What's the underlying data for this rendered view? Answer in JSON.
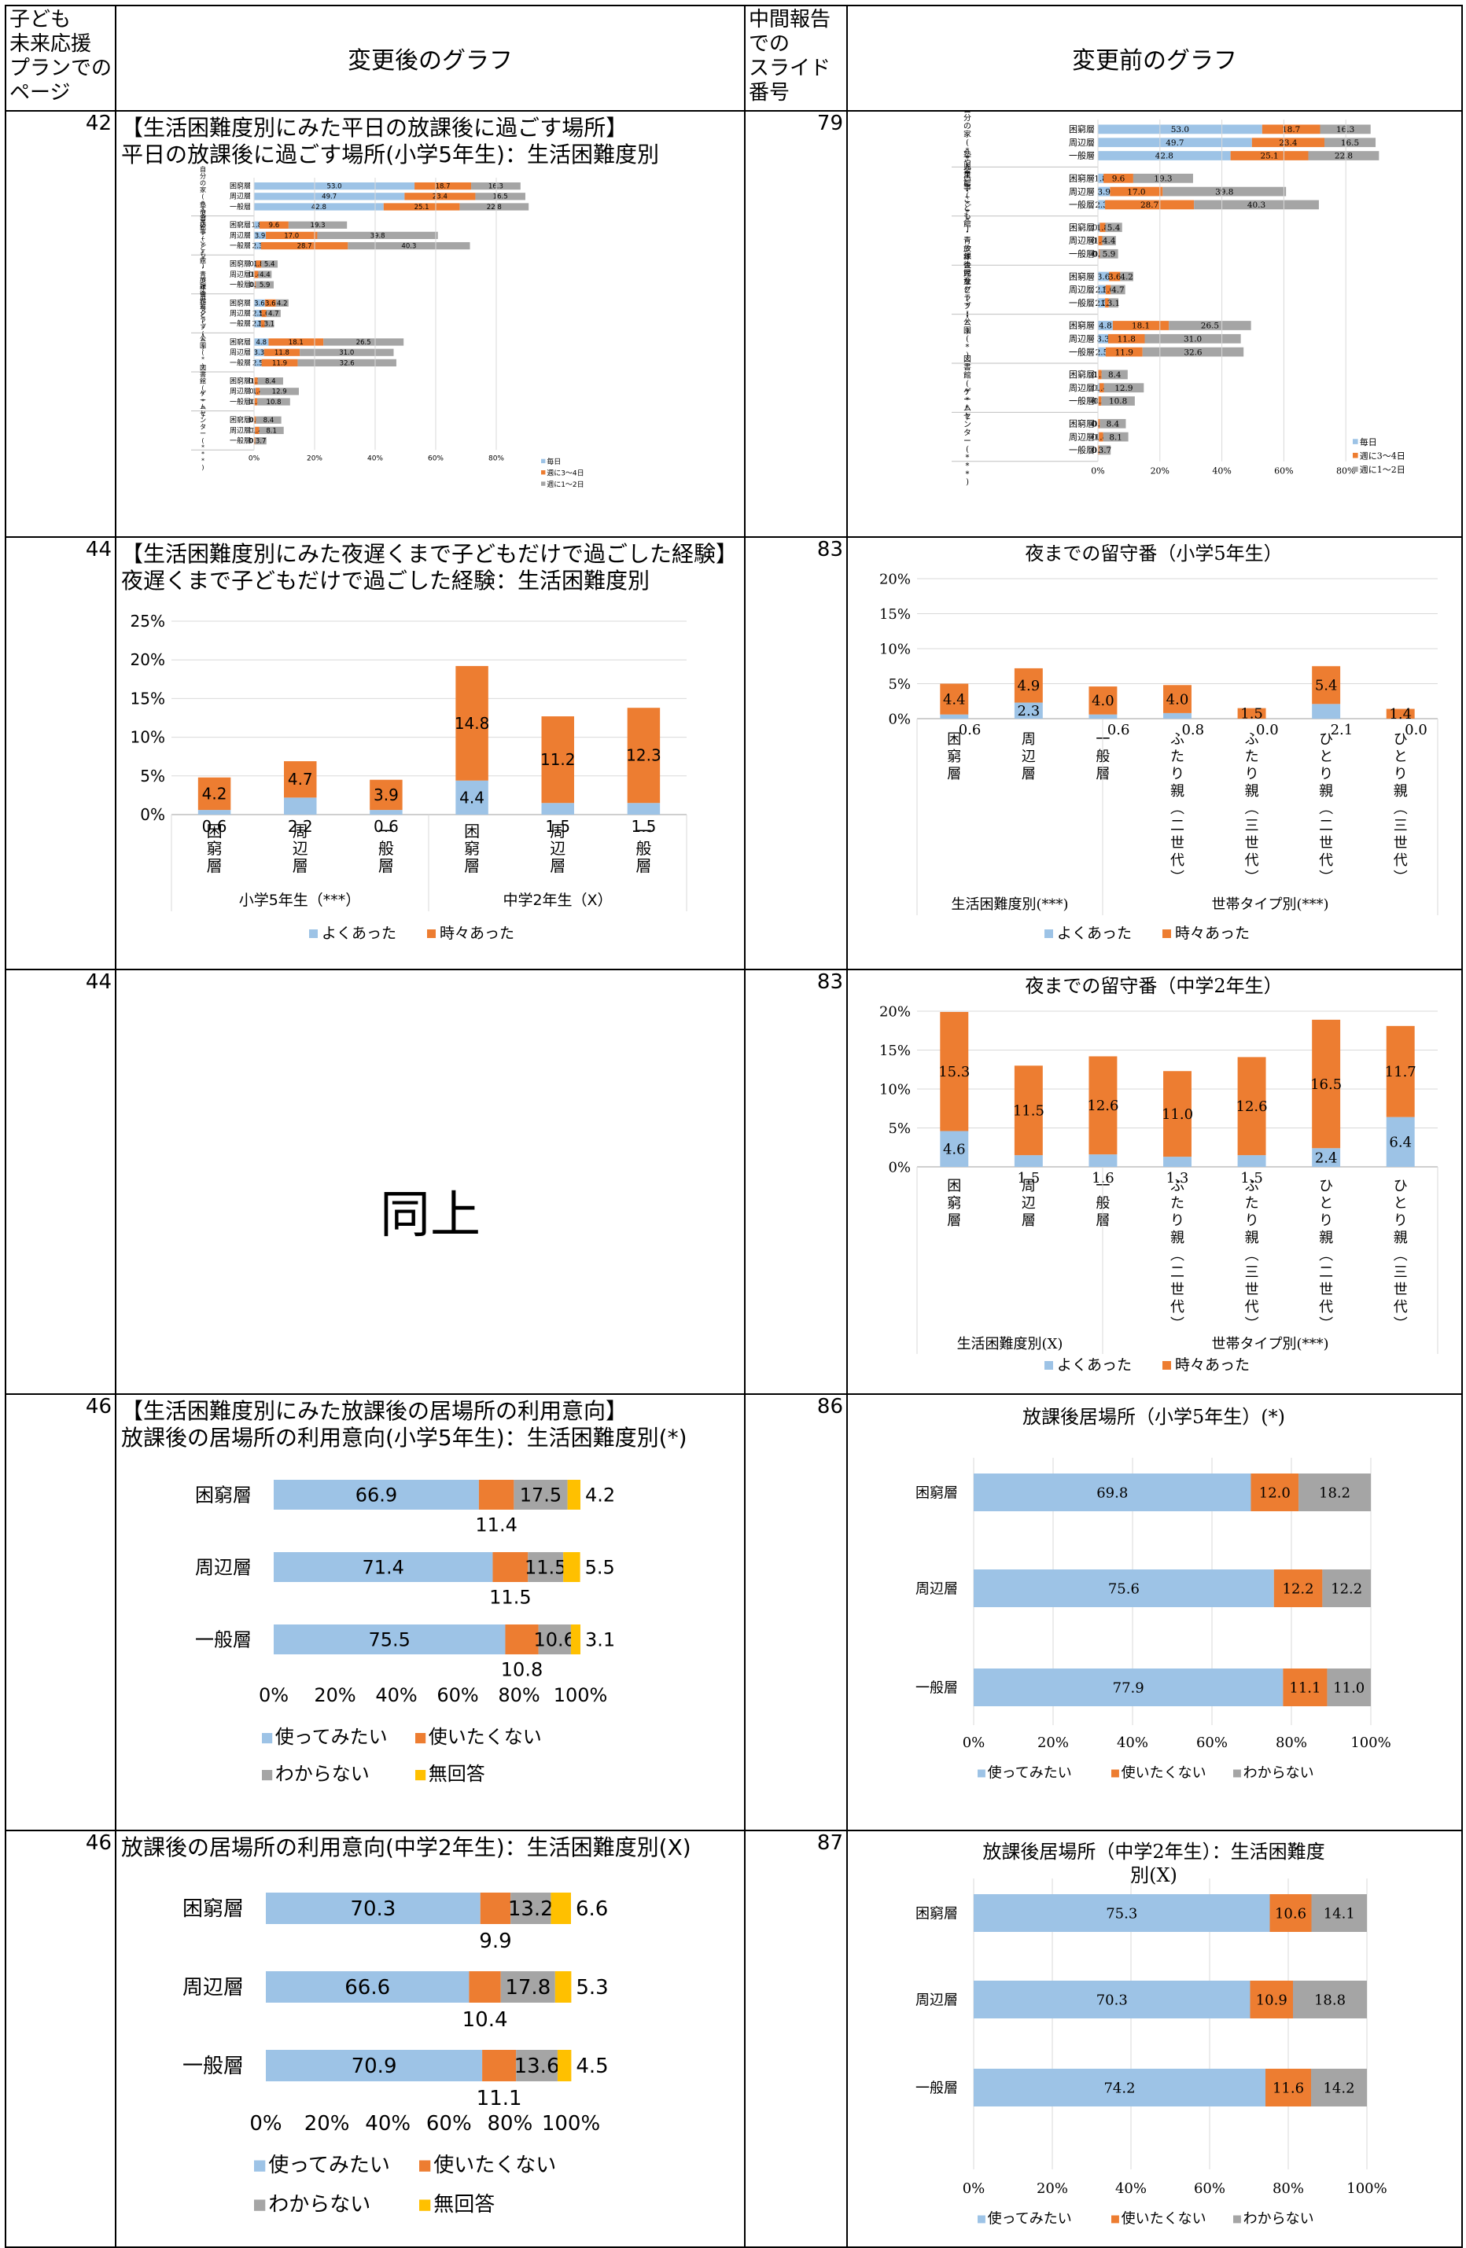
{
  "header": {
    "col1": "子ども\n未来応援\nプランでの\nページ",
    "col2": "変更後のグラフ",
    "col3": "中間報告\nでの\nスライド\n番号",
    "col4": "変更前のグラフ"
  },
  "colors": {
    "blue": "#9DC3E6",
    "orange": "#ED7D31",
    "gray": "#A5A5A5",
    "yellow": "#FFC000"
  },
  "rows": [
    {
      "page": "42",
      "title_lines": [
        "【生活困難度別にみた平日の放課後に過ごす場所】",
        "平日の放課後に過ごす場所(小学5年生)：生活困難度別"
      ],
      "slide": "79",
      "chart_data": {
        "type": "bar",
        "orientation": "horizontal-stacked",
        "groups": [
          {
            "label": "自分の家(***)",
            "rows": [
              {
                "name": "困窮層",
                "values": [
                  53.0,
                  18.7,
                  16.3
                ]
              },
              {
                "name": "周辺層",
                "values": [
                  49.7,
                  23.4,
                  16.5
                ]
              },
              {
                "name": "一般層",
                "values": [
                  42.8,
                  25.1,
                  22.8
                ]
              }
            ]
          },
          {
            "label": "塾や習い事(***)",
            "rows": [
              {
                "name": "困窮層",
                "values": [
                  1.8,
                  9.6,
                  19.3
                ]
              },
              {
                "name": "周辺層",
                "values": [
                  3.9,
                  17.0,
                  39.8
                ]
              },
              {
                "name": "一般層",
                "values": [
                  2.3,
                  28.7,
                  40.3
                ]
              }
            ]
          },
          {
            "label": "児童館・こども館・青少年会館など(*)",
            "rows": [
              {
                "name": "困窮層",
                "values": [
                  0.6,
                  1.8,
                  5.4
                ]
              },
              {
                "name": "周辺層",
                "values": [
                  0.0,
                  1.4,
                  4.4
                ]
              },
              {
                "name": "一般層",
                "values": [
                  0.3,
                  0.3,
                  5.9
                ]
              }
            ]
          },
          {
            "label": "放課後児童クラブ(*)",
            "rows": [
              {
                "name": "困窮層",
                "values": [
                  3.6,
                  3.6,
                  4.2
                ]
              },
              {
                "name": "周辺層",
                "values": [
                  2.5,
                  1.6,
                  4.7
                ]
              },
              {
                "name": "一般層",
                "values": [
                  2.3,
                  1.2,
                  3.1
                ]
              }
            ]
          },
          {
            "label": "公園(*)",
            "rows": [
              {
                "name": "困窮層",
                "values": [
                  4.8,
                  18.1,
                  26.5
                ]
              },
              {
                "name": "周辺層",
                "values": [
                  3.3,
                  11.8,
                  31.0
                ]
              },
              {
                "name": "一般層",
                "values": [
                  2.5,
                  11.9,
                  32.6
                ]
              }
            ]
          },
          {
            "label": "図書館(***)",
            "rows": [
              {
                "name": "困窮層",
                "values": [
                  0.0,
                  1.2,
                  8.4
                ]
              },
              {
                "name": "周辺層",
                "values": [
                  0.5,
                  1.4,
                  12.9
                ]
              },
              {
                "name": "一般層",
                "values": [
                  0.2,
                  0.9,
                  10.8
                ]
              }
            ]
          },
          {
            "label": "ゲームセンター(***)",
            "rows": [
              {
                "name": "困窮層",
                "values": [
                  0.0,
                  0.6,
                  8.4
                ]
              },
              {
                "name": "周辺層",
                "values": [
                  0.3,
                  1.4,
                  8.1
                ]
              },
              {
                "name": "一般層",
                "values": [
                  0.0,
                  0.4,
                  3.7
                ]
              }
            ]
          }
        ],
        "series": [
          "毎日",
          "週に3～4日",
          "週に1～2日"
        ],
        "ticks": [
          "0%",
          "20%",
          "40%",
          "60%",
          "80%"
        ]
      }
    },
    {
      "page": "44",
      "title_lines": [
        "【生活困難度別にみた夜遅くまで子どもだけで過ごした経験】",
        "夜遅くまで子どもだけで過ごした経験：生活困難度別"
      ],
      "slide": "83",
      "chart_data": {
        "type": "bar",
        "orientation": "vertical-stacked",
        "categories": [
          "困窮層",
          "周辺層",
          "一般層",
          "困窮層",
          "周辺層",
          "一般層"
        ],
        "group_labels": [
          "小学5年生（***）",
          "中学2年生（X）"
        ],
        "series": [
          {
            "name": "よくあった",
            "values": [
              0.6,
              2.2,
              0.6,
              4.4,
              1.5,
              1.5
            ]
          },
          {
            "name": "時々あった",
            "values": [
              4.2,
              4.7,
              3.9,
              14.8,
              11.2,
              12.3
            ]
          }
        ],
        "ticks": [
          "0%",
          "5%",
          "10%",
          "15%",
          "20%",
          "25%"
        ],
        "ylim": [
          0,
          25
        ]
      },
      "old_chart": {
        "title": "夜までの留守番（小学5年生）",
        "categories": [
          "困窮層",
          "周辺層",
          "一般層",
          "ふたり親（二世代）",
          "ふたり親（三世代）",
          "ひとり親（二世代）",
          "ひとり親（三世代）"
        ],
        "group_labels": [
          "生活困難度別(***)",
          "世帯タイプ別(***)"
        ],
        "series": [
          {
            "name": "よくあった",
            "values": [
              0.6,
              2.3,
              0.6,
              0.8,
              0.0,
              2.1,
              0.0
            ]
          },
          {
            "name": "時々あった",
            "values": [
              4.4,
              4.9,
              4.0,
              4.0,
              1.5,
              5.4,
              1.4
            ]
          }
        ],
        "ticks": [
          "0%",
          "5%",
          "10%",
          "15%",
          "20%"
        ],
        "ylim": [
          0,
          20
        ]
      }
    },
    {
      "page": "44",
      "same_label": "同上",
      "slide": "83",
      "old_chart": {
        "title": "夜までの留守番（中学2年生）",
        "categories": [
          "困窮層",
          "周辺層",
          "一般層",
          "ふたり親（二世代）",
          "ふたり親（三世代）",
          "ひとり親（二世代）",
          "ひとり親（三世代）"
        ],
        "group_labels": [
          "生活困難度別(X)",
          "世帯タイプ別(***)"
        ],
        "series": [
          {
            "name": "よくあった",
            "values": [
              4.6,
              1.5,
              1.6,
              1.3,
              1.5,
              2.4,
              6.4
            ]
          },
          {
            "name": "時々あった",
            "values": [
              15.3,
              11.5,
              12.6,
              11.0,
              12.6,
              16.5,
              11.7
            ]
          }
        ],
        "ticks": [
          "0%",
          "5%",
          "10%",
          "15%",
          "20%"
        ],
        "ylim": [
          0,
          20
        ]
      }
    },
    {
      "page": "46",
      "title_lines": [
        "【生活困難度別にみた放課後の居場所の利用意向】",
        "放課後の居場所の利用意向(小学5年生)：生活困難度別(*)"
      ],
      "slide": "86",
      "chart_data": {
        "type": "bar",
        "orientation": "horizontal-stacked-100",
        "categories": [
          "困窮層",
          "周辺層",
          "一般層"
        ],
        "series": [
          {
            "name": "使ってみたい",
            "values": [
              66.9,
              71.4,
              75.5
            ]
          },
          {
            "name": "使いたくない",
            "values": [
              11.4,
              11.5,
              10.8
            ]
          },
          {
            "name": "わからない",
            "values": [
              17.5,
              11.5,
              10.6
            ]
          },
          {
            "name": "無回答",
            "values": [
              4.2,
              5.5,
              3.1
            ]
          }
        ],
        "ticks": [
          "0%",
          "20%",
          "40%",
          "60%",
          "80%",
          "100%"
        ]
      },
      "old_chart": {
        "title": "放課後居場所（小学5年生）(*)",
        "categories": [
          "困窮層",
          "周辺層",
          "一般層"
        ],
        "series": [
          {
            "name": "使ってみたい",
            "values": [
              69.8,
              75.6,
              77.9
            ]
          },
          {
            "name": "使いたくない",
            "values": [
              12.0,
              12.2,
              11.1
            ]
          },
          {
            "name": "わからない",
            "values": [
              18.2,
              12.2,
              11.0
            ]
          }
        ],
        "ticks": [
          "0%",
          "20%",
          "40%",
          "60%",
          "80%",
          "100%"
        ]
      }
    },
    {
      "page": "46",
      "title_lines": [
        "放課後の居場所の利用意向(中学2年生)：生活困難度別(X)"
      ],
      "slide": "87",
      "chart_data": {
        "type": "bar",
        "orientation": "horizontal-stacked-100",
        "categories": [
          "困窮層",
          "周辺層",
          "一般層"
        ],
        "series": [
          {
            "name": "使ってみたい",
            "values": [
              70.3,
              66.6,
              70.9
            ]
          },
          {
            "name": "使いたくない",
            "values": [
              9.9,
              10.4,
              11.1
            ]
          },
          {
            "name": "わからない",
            "values": [
              13.2,
              17.8,
              13.6
            ]
          },
          {
            "name": "無回答",
            "values": [
              6.6,
              5.3,
              4.5
            ]
          }
        ],
        "ticks": [
          "0%",
          "20%",
          "40%",
          "60%",
          "80%",
          "100%"
        ]
      },
      "old_chart": {
        "title_lines": [
          "放課後居場所（中学2年生）：生活困難度",
          "別(X)"
        ],
        "categories": [
          "困窮層",
          "周辺層",
          "一般層"
        ],
        "series": [
          {
            "name": "使ってみたい",
            "values": [
              75.3,
              70.3,
              74.2
            ]
          },
          {
            "name": "使いたくない",
            "values": [
              10.6,
              10.9,
              11.6
            ]
          },
          {
            "name": "わからない",
            "values": [
              14.1,
              18.8,
              14.2
            ]
          }
        ],
        "ticks": [
          "0%",
          "20%",
          "40%",
          "60%",
          "80%",
          "100%"
        ]
      }
    }
  ]
}
